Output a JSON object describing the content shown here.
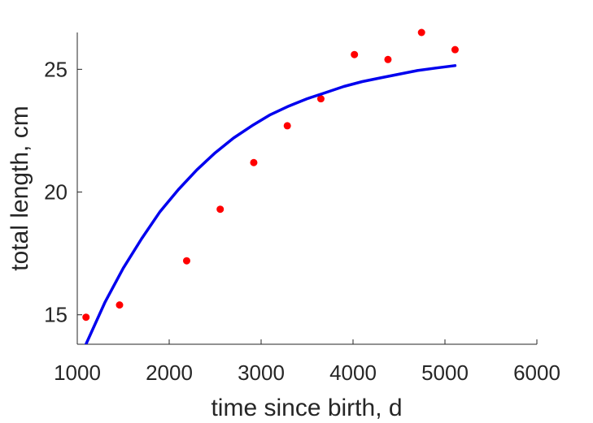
{
  "chart_data": {
    "type": "scatter",
    "title": "",
    "xlabel": "time since birth, d",
    "ylabel": "total length, cm",
    "xlim": [
      1000,
      6000
    ],
    "ylim": [
      13.8,
      26.5
    ],
    "xticks": [
      "1000",
      "2000",
      "3000",
      "4000",
      "5000",
      "6000"
    ],
    "yticks": [
      "15",
      "20",
      "25"
    ],
    "grid": false,
    "legend": "none",
    "series": [
      {
        "kind": "points",
        "color": "#ff0000",
        "x": [
          1095,
          1460,
          2190,
          2555,
          2920,
          3285,
          3650,
          4015,
          4380,
          4745,
          5110
        ],
        "y": [
          14.9,
          15.4,
          17.2,
          19.3,
          21.2,
          22.7,
          23.8,
          25.6,
          25.4,
          26.5,
          25.8
        ]
      },
      {
        "kind": "line",
        "color": "#0000ee",
        "x": [
          1095,
          1300,
          1500,
          1700,
          1900,
          2100,
          2300,
          2500,
          2700,
          2900,
          3100,
          3300,
          3500,
          3700,
          3900,
          4100,
          4300,
          4500,
          4700,
          4900,
          5110
        ],
        "y": [
          13.8,
          15.5,
          16.9,
          18.1,
          19.2,
          20.1,
          20.9,
          21.6,
          22.2,
          22.7,
          23.15,
          23.5,
          23.8,
          24.05,
          24.3,
          24.5,
          24.65,
          24.8,
          24.95,
          25.05,
          25.15
        ]
      }
    ]
  }
}
